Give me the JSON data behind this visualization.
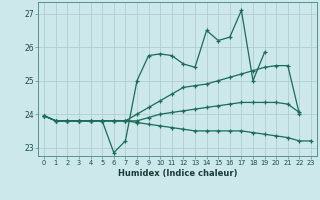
{
  "title": "",
  "xlabel": "Humidex (Indice chaleur)",
  "ylabel": "",
  "bg_color": "#cce8ea",
  "grid_color": "#b0ced0",
  "line_color": "#1a6b5a",
  "xlim": [
    -0.5,
    23.5
  ],
  "ylim": [
    22.75,
    27.35
  ],
  "yticks": [
    23,
    24,
    25,
    26,
    27
  ],
  "xticks": [
    0,
    1,
    2,
    3,
    4,
    5,
    6,
    7,
    8,
    9,
    10,
    11,
    12,
    13,
    14,
    15,
    16,
    17,
    18,
    19,
    20,
    21,
    22,
    23
  ],
  "series": [
    [
      23.95,
      23.8,
      23.8,
      23.8,
      23.8,
      23.8,
      22.85,
      23.2,
      25.0,
      25.75,
      25.8,
      25.75,
      25.5,
      25.4,
      26.5,
      26.2,
      26.3,
      27.1,
      25.0,
      25.85,
      null,
      null,
      null,
      null
    ],
    [
      23.95,
      23.8,
      23.8,
      23.8,
      23.8,
      23.8,
      23.8,
      23.8,
      24.0,
      24.2,
      24.4,
      24.6,
      24.8,
      24.85,
      24.9,
      25.0,
      25.1,
      25.2,
      25.3,
      25.4,
      25.45,
      25.45,
      24.0,
      null
    ],
    [
      23.95,
      23.8,
      23.8,
      23.8,
      23.8,
      23.8,
      23.8,
      23.8,
      23.8,
      23.9,
      24.0,
      24.05,
      24.1,
      24.15,
      24.2,
      24.25,
      24.3,
      24.35,
      24.35,
      24.35,
      24.35,
      24.3,
      24.05,
      null
    ],
    [
      23.95,
      23.8,
      23.8,
      23.8,
      23.8,
      23.8,
      23.8,
      23.8,
      23.75,
      23.7,
      23.65,
      23.6,
      23.55,
      23.5,
      23.5,
      23.5,
      23.5,
      23.5,
      23.45,
      23.4,
      23.35,
      23.3,
      23.2,
      23.2
    ]
  ]
}
